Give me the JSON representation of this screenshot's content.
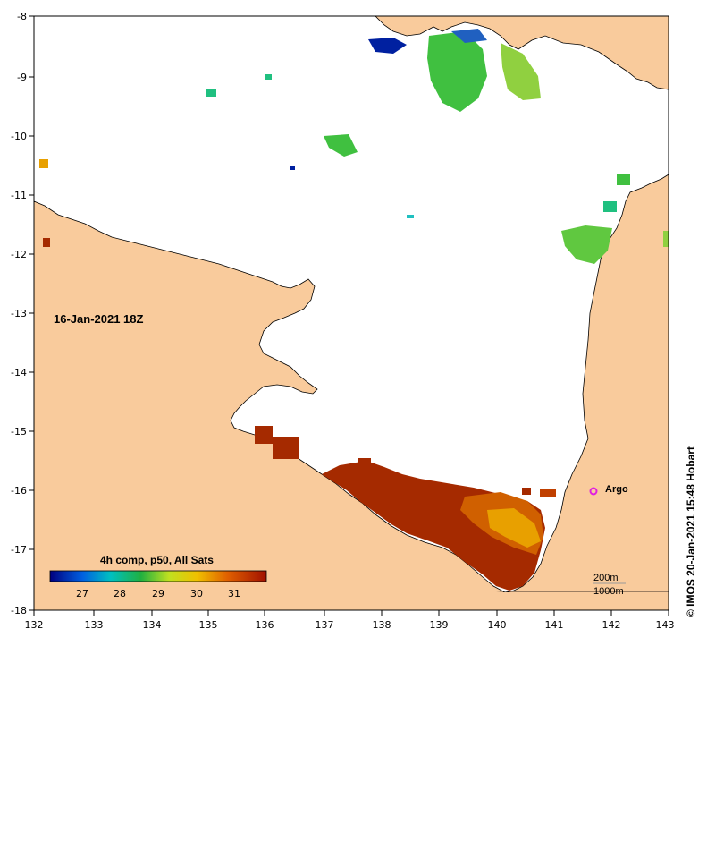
{
  "map": {
    "date": "16-Jan-2021 18Z",
    "credit": "© IMOS 20-Jan-2021 15:48 Hobart",
    "legend_title": "4h comp, p50, All Sats",
    "legend_ticks": [
      "27",
      "28",
      "29",
      "30",
      "31"
    ],
    "lon_ticks": [
      "132",
      "133",
      "134",
      "135",
      "136",
      "137",
      "138",
      "139",
      "140",
      "141",
      "142",
      "143"
    ],
    "lat_ticks": [
      "-8",
      "-9",
      "-10",
      "-11",
      "-12",
      "-13",
      "-14",
      "-15",
      "-16",
      "-17",
      "-18"
    ],
    "marker_label": "Argo",
    "contour_200": "200m",
    "contour_1000": "1000m",
    "colors": {
      "land": "#f9cb9c",
      "sea": "#ffffff",
      "argo": "#e020e0",
      "sst_hot": "#a52a00",
      "sst_warm": "#d06000",
      "sst_orange": "#e8a000",
      "sst_green": "#40c040",
      "sst_cyan": "#20c0c0",
      "sst_blue": "#0020a0"
    }
  }
}
